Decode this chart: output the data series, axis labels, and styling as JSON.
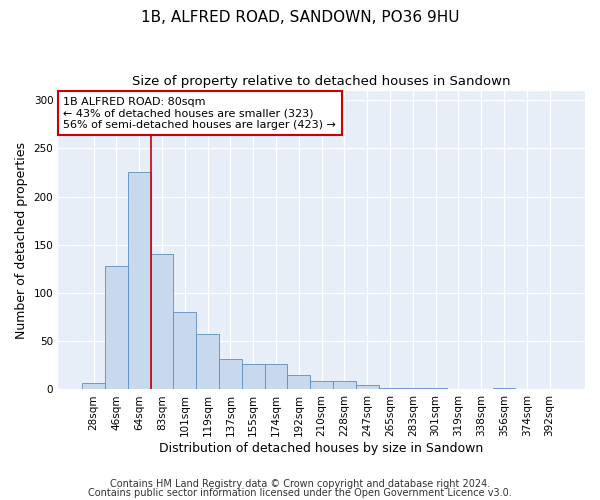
{
  "title": "1B, ALFRED ROAD, SANDOWN, PO36 9HU",
  "subtitle": "Size of property relative to detached houses in Sandown",
  "xlabel": "Distribution of detached houses by size in Sandown",
  "ylabel": "Number of detached properties",
  "bin_labels": [
    "28sqm",
    "46sqm",
    "64sqm",
    "83sqm",
    "101sqm",
    "119sqm",
    "137sqm",
    "155sqm",
    "174sqm",
    "192sqm",
    "210sqm",
    "228sqm",
    "247sqm",
    "265sqm",
    "283sqm",
    "301sqm",
    "319sqm",
    "338sqm",
    "356sqm",
    "374sqm",
    "392sqm"
  ],
  "bar_heights": [
    7,
    128,
    226,
    140,
    80,
    58,
    32,
    26,
    26,
    15,
    9,
    9,
    5,
    2,
    1,
    1,
    0,
    0,
    1,
    0,
    0
  ],
  "bar_color": "#c9d9ed",
  "bar_edge_color": "#5b8ec4",
  "vline_color": "#cc0000",
  "vline_pos": 2.5,
  "annotation_title": "1B ALFRED ROAD: 80sqm",
  "annotation_line1": "← 43% of detached houses are smaller (323)",
  "annotation_line2": "56% of semi-detached houses are larger (423) →",
  "annotation_box_color": "#ffffff",
  "annotation_box_edge": "#cc0000",
  "ylim": [
    0,
    310
  ],
  "yticks": [
    0,
    50,
    100,
    150,
    200,
    250,
    300
  ],
  "footer1": "Contains HM Land Registry data © Crown copyright and database right 2024.",
  "footer2": "Contains public sector information licensed under the Open Government Licence v3.0.",
  "bg_color": "#ffffff",
  "plot_bg_color": "#e8eef8",
  "title_fontsize": 11,
  "subtitle_fontsize": 9.5,
  "axis_label_fontsize": 9,
  "tick_fontsize": 7.5,
  "annotation_fontsize": 8,
  "footer_fontsize": 7
}
